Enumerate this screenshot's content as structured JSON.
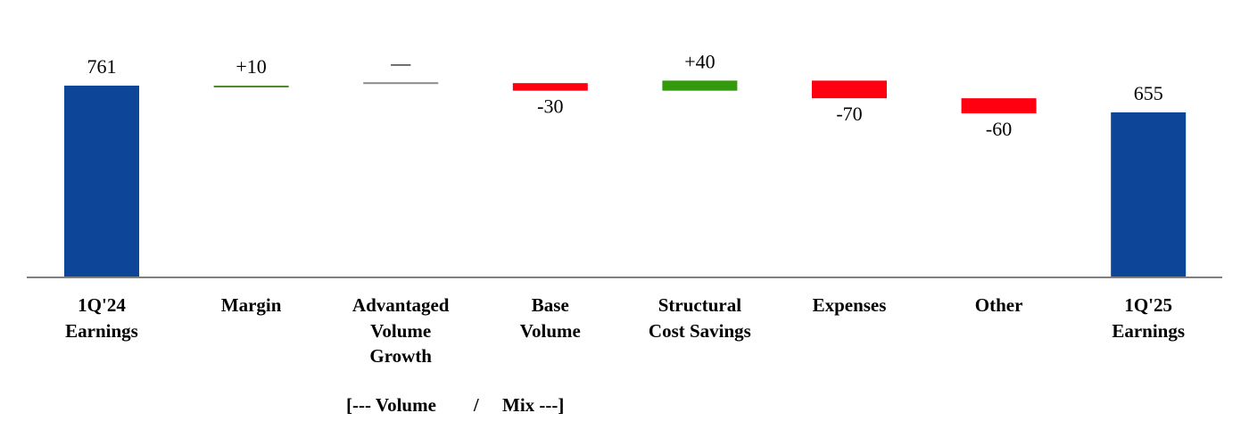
{
  "chart_data": {
    "type": "waterfall",
    "categories": [
      "1Q'24 Earnings",
      "Margin",
      "Advantaged Volume Growth",
      "Base Volume",
      "Structural Cost Savings",
      "Expenses",
      "Other",
      "1Q'25 Earnings"
    ],
    "category_lines": [
      [
        "1Q'24",
        "Earnings"
      ],
      [
        "Margin"
      ],
      [
        "Advantaged",
        "Volume",
        "Growth"
      ],
      [
        "Base",
        "Volume"
      ],
      [
        "Structural",
        "Cost Savings"
      ],
      [
        "Expenses"
      ],
      [
        "Other"
      ],
      [
        "1Q'25",
        "Earnings"
      ]
    ],
    "values": [
      761,
      10,
      0,
      -30,
      40,
      -70,
      -60,
      655
    ],
    "kinds": [
      "total",
      "delta",
      "delta",
      "delta",
      "delta",
      "delta",
      "delta",
      "total"
    ],
    "labels": [
      "761",
      "+10",
      "—",
      "-30",
      "+40",
      "-70",
      "-60",
      "655"
    ],
    "group_label": "[--- Volume        /     Mix ---]",
    "colors": {
      "total": "#0d4699",
      "positive": "#339a0e",
      "positive_thin": "#4a8a2a",
      "negative": "#fe0010",
      "zero": "#8c8c8c",
      "axis": "#808080"
    },
    "ylim": [
      0,
      1100
    ],
    "grid": false,
    "legend": "none"
  }
}
